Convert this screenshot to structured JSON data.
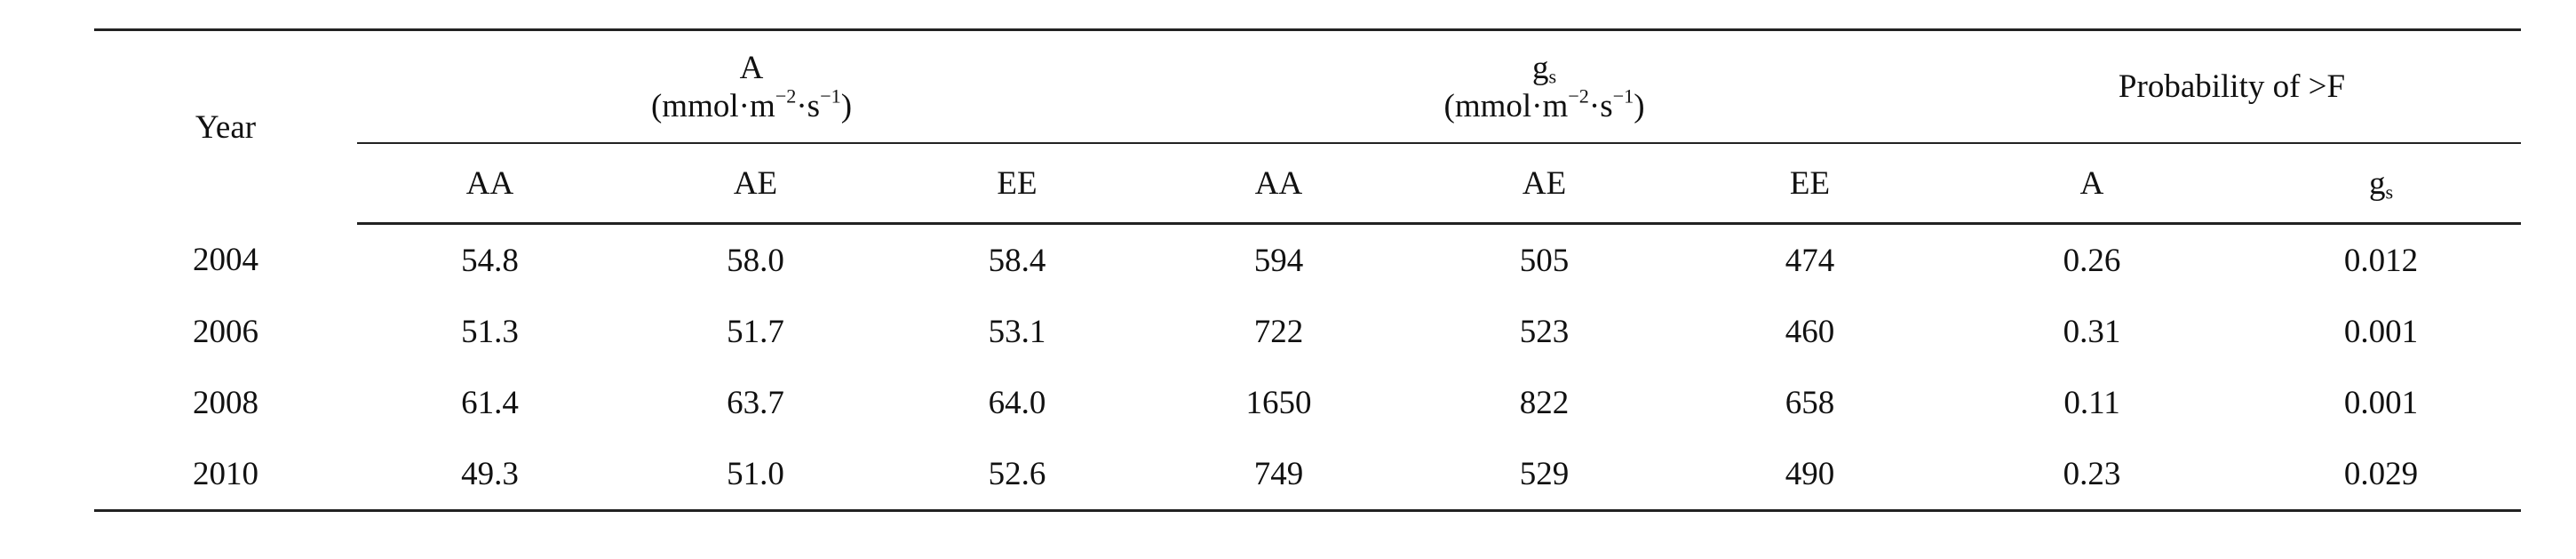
{
  "table": {
    "year_header": "Year",
    "groups": [
      {
        "label": [
          "A"
        ],
        "unit": [
          "(mmol·m",
          "−2",
          "·s",
          "−1",
          ")"
        ]
      },
      {
        "label": [
          "g",
          "s"
        ],
        "unit": [
          "(mmol·m",
          "−2",
          "·s",
          "−1",
          ")"
        ]
      },
      {
        "label": [
          "Probability of >F"
        ],
        "unit": []
      }
    ],
    "subheaders": [
      [
        "AA"
      ],
      [
        "AE"
      ],
      [
        "EE"
      ],
      [
        "AA"
      ],
      [
        "AE"
      ],
      [
        "EE"
      ],
      [
        "A"
      ],
      [
        "g",
        "s"
      ]
    ],
    "rows": [
      [
        "2004",
        "54.8",
        "58.0",
        "58.4",
        "594",
        "505",
        "474",
        "0.26",
        "0.012"
      ],
      [
        "2006",
        "51.3",
        "51.7",
        "53.1",
        "722",
        "523",
        "460",
        "0.31",
        "0.001"
      ],
      [
        "2008",
        "61.4",
        "63.7",
        "64.0",
        "1650",
        "822",
        "658",
        "0.11",
        "0.001"
      ],
      [
        "2010",
        "49.3",
        "51.0",
        "52.6",
        "749",
        "529",
        "490",
        "0.23",
        "0.029"
      ]
    ]
  }
}
